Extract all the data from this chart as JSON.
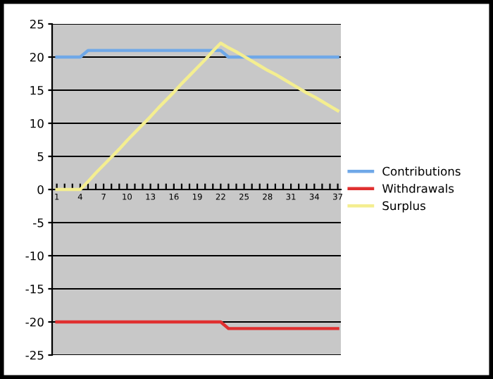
{
  "chart_data": {
    "type": "line",
    "categories": [
      "1",
      null,
      null,
      "4",
      null,
      null,
      "7",
      null,
      null,
      "10",
      null,
      null,
      "13",
      null,
      null,
      "16",
      null,
      null,
      "19",
      null,
      null,
      "22",
      null,
      null,
      "25",
      null,
      null,
      "28",
      null,
      null,
      "31",
      null,
      null,
      "34",
      null,
      null,
      "37"
    ],
    "series": [
      {
        "name": "Contributions",
        "color": "#6fa8e8",
        "values": [
          20,
          20,
          20,
          20,
          21,
          21,
          21,
          21,
          21,
          21,
          21,
          21,
          21,
          21,
          21,
          21,
          21,
          21,
          21,
          21,
          21,
          21,
          20,
          20,
          20,
          20,
          20,
          20,
          20,
          20,
          20,
          20,
          20,
          20,
          20,
          20,
          20
        ]
      },
      {
        "name": "Withdrawals",
        "color": "#e03030",
        "values": [
          -20,
          -20,
          -20,
          -20,
          -20,
          -20,
          -20,
          -20,
          -20,
          -20,
          -20,
          -20,
          -20,
          -20,
          -20,
          -20,
          -20,
          -20,
          -20,
          -20,
          -20,
          -20,
          -21,
          -21,
          -21,
          -21,
          -21,
          -21,
          -21,
          -21,
          -21,
          -21,
          -21,
          -21,
          -21,
          -21,
          -21
        ]
      },
      {
        "name": "Surplus",
        "color": "#f4ee90",
        "values": [
          0,
          0,
          0,
          0,
          1.2,
          2.5,
          3.7,
          4.9,
          6.1,
          7.4,
          8.6,
          9.8,
          11.0,
          12.3,
          13.5,
          14.7,
          16.0,
          17.2,
          18.4,
          19.6,
          20.9,
          22.1,
          21.4,
          20.8,
          20.1,
          19.4,
          18.7,
          18.0,
          17.4,
          16.7,
          16.0,
          15.3,
          14.6,
          14.0,
          13.3,
          12.6,
          11.9
        ]
      }
    ],
    "ylim": [
      -25,
      25
    ],
    "yticks": [
      -25,
      -20,
      -15,
      -10,
      -5,
      0,
      5,
      10,
      15,
      20,
      25
    ],
    "grid": "y",
    "legend": "right",
    "marker": "none",
    "line_style": "solid"
  }
}
